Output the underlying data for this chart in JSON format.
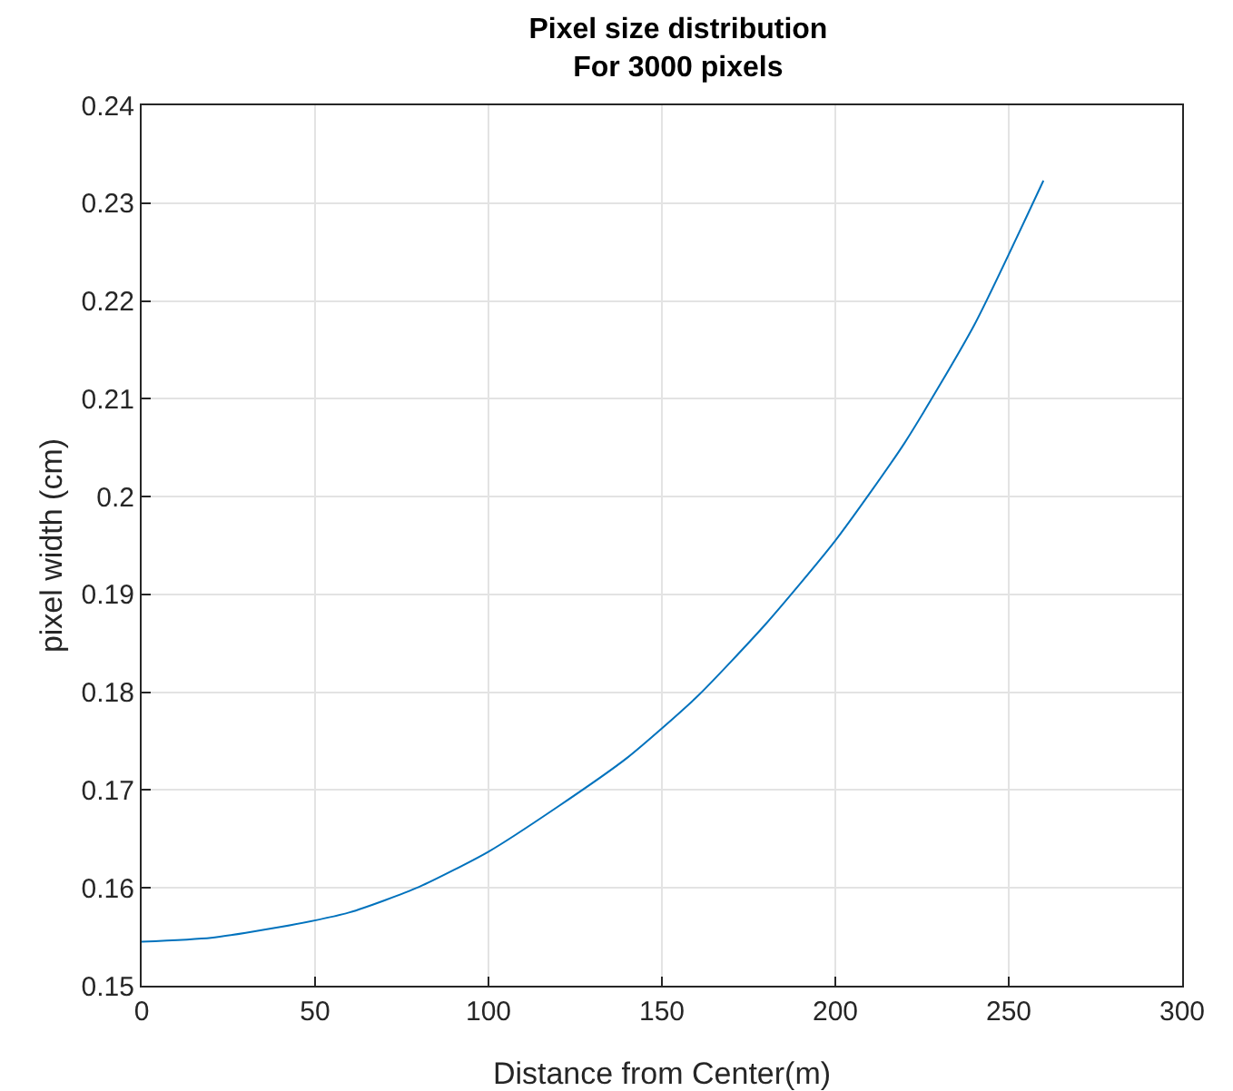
{
  "chart_data": {
    "type": "line",
    "title": "Pixel size distribution\nFor 3000 pixels",
    "xlabel": "Distance from Center(m)",
    "ylabel": "pixel width (cm)",
    "x": [
      0,
      20,
      40,
      60,
      80,
      100,
      120,
      140,
      160,
      180,
      200,
      220,
      240,
      260
    ],
    "series": [
      {
        "color": "#0072bd",
        "values": [
          0.1545,
          0.1549,
          0.156,
          0.1575,
          0.1601,
          0.1637,
          0.1683,
          0.1733,
          0.1795,
          0.187,
          0.1955,
          0.2055,
          0.2175,
          0.2323
        ]
      }
    ],
    "xlim": [
      0,
      300
    ],
    "xticks": [
      0,
      50,
      100,
      150,
      200,
      250,
      300
    ],
    "ylim": [
      0.15,
      0.24
    ],
    "yticks": [
      0.15,
      0.16,
      0.17,
      0.18,
      0.19,
      0.2,
      0.21,
      0.22,
      0.23,
      0.24
    ],
    "grid": true,
    "marker": "none",
    "line_style": "solid"
  }
}
